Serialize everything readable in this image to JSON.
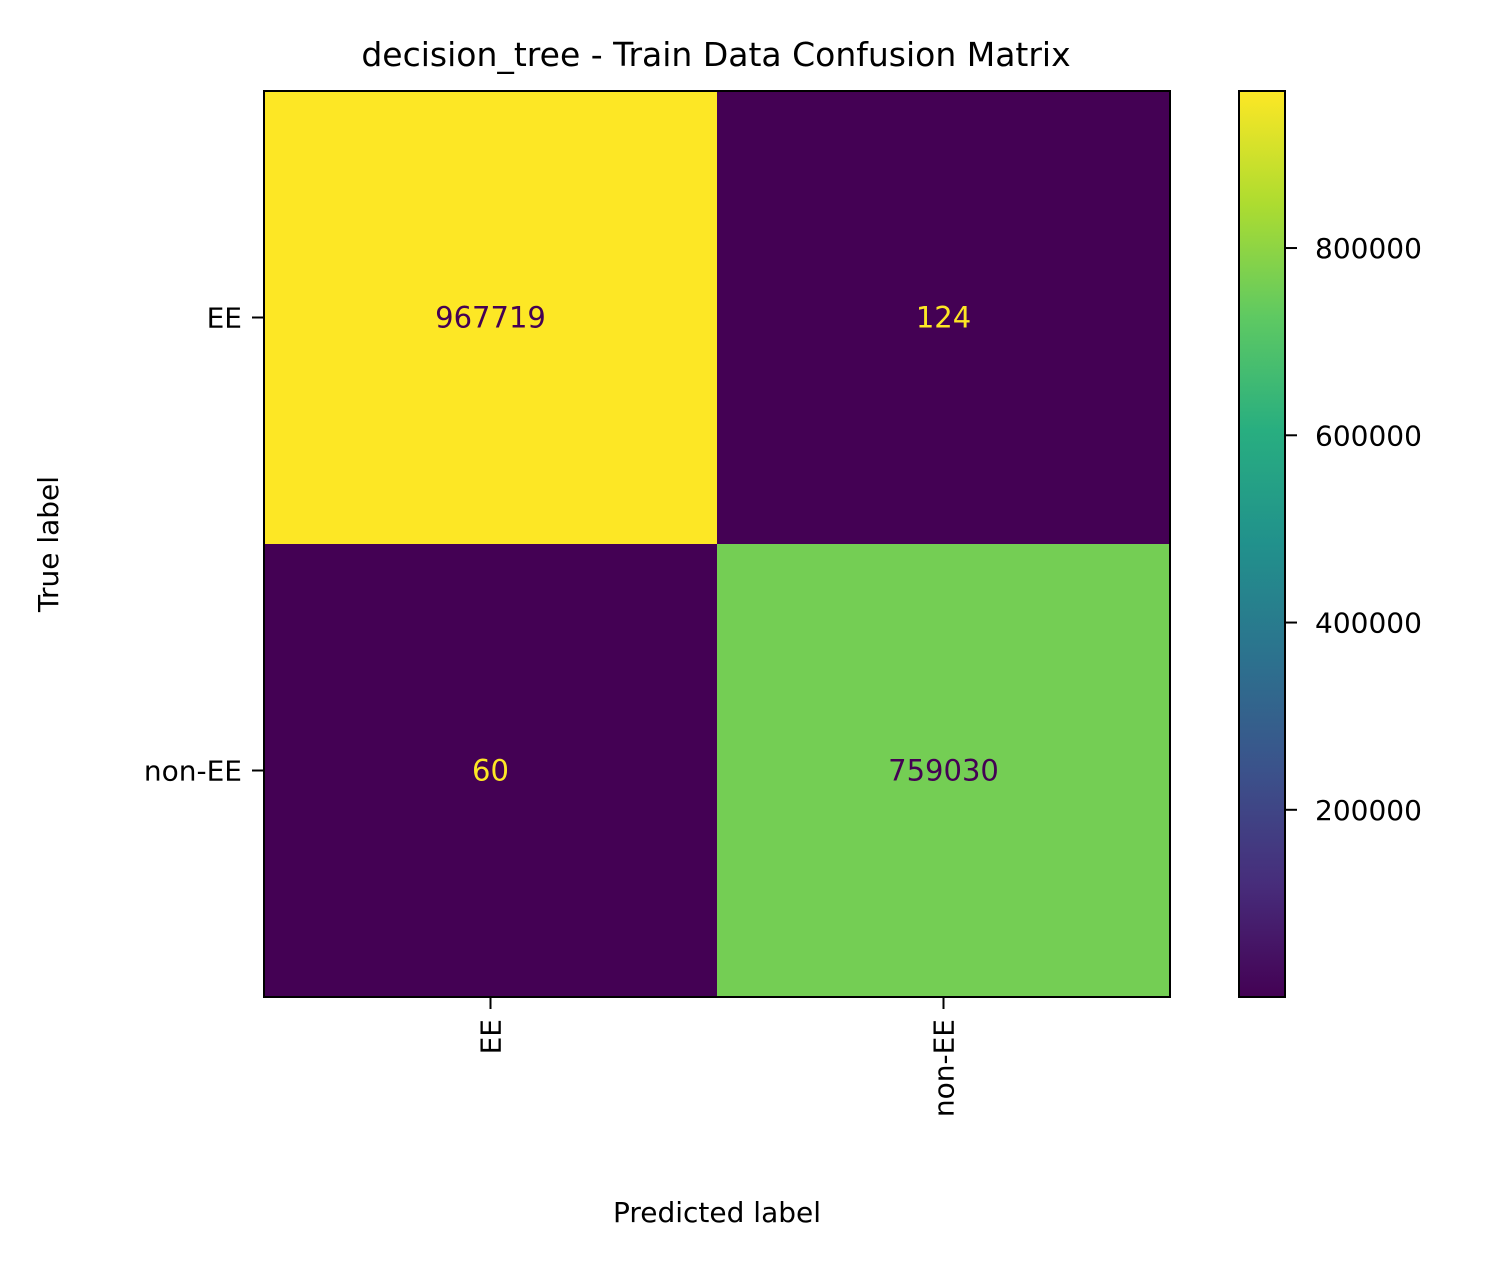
{
  "chart_data": {
    "type": "heatmap",
    "title": "decision_tree - Train Data Confusion Matrix",
    "xlabel": "Predicted label",
    "ylabel": "True label",
    "x_categories": [
      "EE",
      "non-EE"
    ],
    "y_categories": [
      "EE",
      "non-EE"
    ],
    "values": [
      [
        967719,
        124
      ],
      [
        60,
        759030
      ]
    ],
    "value_labels": [
      [
        "967719",
        "124"
      ],
      [
        "60",
        "759030"
      ]
    ],
    "colormap": "viridis",
    "color_range": [
      60,
      967719
    ],
    "colorbar": {
      "ticks": [
        200000,
        400000,
        600000,
        800000
      ],
      "tick_labels": [
        "200000",
        "400000",
        "600000",
        "800000"
      ]
    },
    "text_colors": {
      "on_dark": "#fde725",
      "on_light": "#440154"
    },
    "grid": false,
    "x_tick_rotation": "vertical"
  }
}
